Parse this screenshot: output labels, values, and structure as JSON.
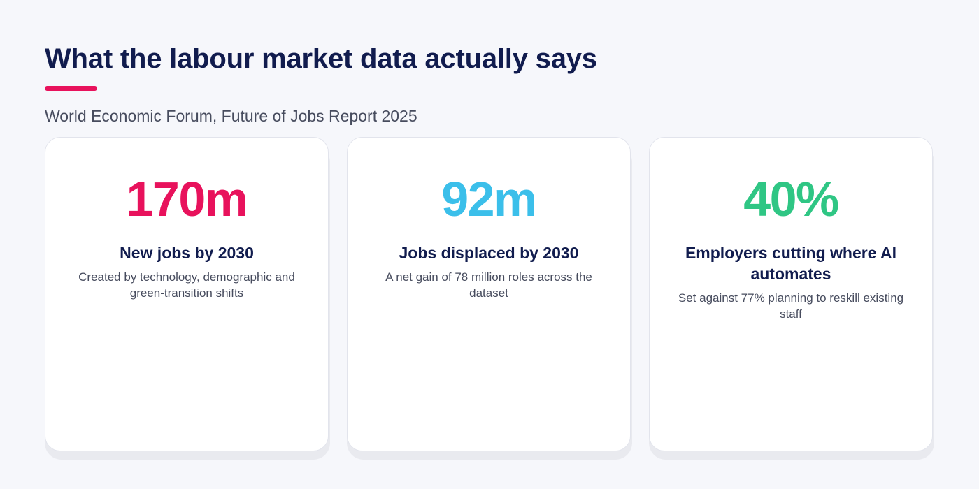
{
  "header": {
    "title": "What the labour market data actually says",
    "subtitle": "World Economic Forum, Future of Jobs Report 2025",
    "accent_color": "#e8125c"
  },
  "stats": [
    {
      "value": "170m",
      "label": "New jobs by 2030",
      "description": "Created by technology, demographic and green-transition shifts",
      "color": "#e8125c"
    },
    {
      "value": "92m",
      "label": "Jobs displaced by 2030",
      "description": "A net gain of 78 million roles across the dataset",
      "color": "#3bbfea"
    },
    {
      "value": "40%",
      "label": "Employers cutting where AI automates",
      "description": "Set against 77% planning to reskill existing staff",
      "color": "#2fc684"
    }
  ]
}
